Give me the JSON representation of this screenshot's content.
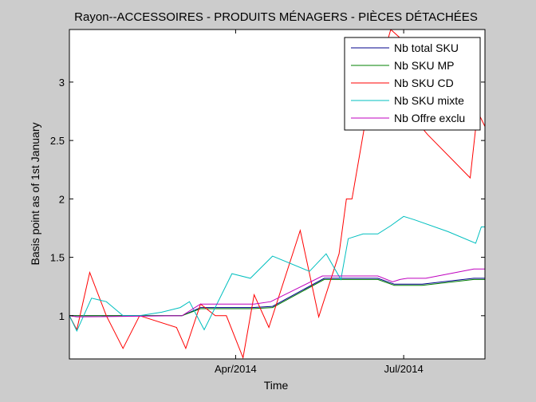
{
  "chart_data": {
    "type": "line",
    "title": "Rayon--ACCESSOIRES - PRODUITS MÉNAGERS - PIÈCES DÉTACHÉES",
    "xlabel": "Time",
    "ylabel": "Basis point as of 1st January",
    "xlim": [
      "2014-01-01",
      "2014-08-14"
    ],
    "ylim": [
      0.63,
      3.45
    ],
    "x_ticks": [
      {
        "date": "2014-04-01",
        "label": "Apr/2014"
      },
      {
        "date": "2014-07-01",
        "label": "Jul/2014"
      }
    ],
    "y_ticks": [
      {
        "value": 1,
        "label": "1"
      },
      {
        "value": 1.5,
        "label": "1.5"
      },
      {
        "value": 2,
        "label": "2"
      },
      {
        "value": 2.5,
        "label": "2.5"
      },
      {
        "value": 3,
        "label": "3"
      }
    ],
    "grid": false,
    "legend_position": "top-right",
    "series": [
      {
        "name": "Nb total SKU",
        "color": "#00008b",
        "points": [
          [
            "2014-01-01",
            1.0
          ],
          [
            "2014-03-03",
            1.0
          ],
          [
            "2014-03-13",
            1.07
          ],
          [
            "2014-04-10",
            1.07
          ],
          [
            "2014-04-21",
            1.08
          ],
          [
            "2014-05-19",
            1.32
          ],
          [
            "2014-06-17",
            1.32
          ],
          [
            "2014-06-26",
            1.27
          ],
          [
            "2014-07-11",
            1.27
          ],
          [
            "2014-08-08",
            1.32
          ],
          [
            "2014-08-14",
            1.32
          ]
        ]
      },
      {
        "name": "Nb SKU MP",
        "color": "#008000",
        "points": [
          [
            "2014-01-01",
            1.0
          ],
          [
            "2014-03-03",
            1.0
          ],
          [
            "2014-03-13",
            1.06
          ],
          [
            "2014-04-10",
            1.06
          ],
          [
            "2014-04-21",
            1.07
          ],
          [
            "2014-05-19",
            1.31
          ],
          [
            "2014-06-17",
            1.31
          ],
          [
            "2014-06-26",
            1.26
          ],
          [
            "2014-07-11",
            1.26
          ],
          [
            "2014-08-08",
            1.31
          ],
          [
            "2014-08-14",
            1.31
          ]
        ]
      },
      {
        "name": "Nb SKU CD",
        "color": "#ff0000",
        "points": [
          [
            "2014-01-01",
            1.0
          ],
          [
            "2014-01-05",
            0.88
          ],
          [
            "2014-01-12",
            1.37
          ],
          [
            "2014-01-21",
            1.0
          ],
          [
            "2014-01-30",
            0.72
          ],
          [
            "2014-02-08",
            1.0
          ],
          [
            "2014-02-28",
            0.9
          ],
          [
            "2014-03-05",
            0.72
          ],
          [
            "2014-03-13",
            1.1
          ],
          [
            "2014-03-21",
            1.0
          ],
          [
            "2014-03-27",
            1.0
          ],
          [
            "2014-04-05",
            0.64
          ],
          [
            "2014-04-11",
            1.18
          ],
          [
            "2014-04-19",
            0.9
          ],
          [
            "2014-05-06",
            1.73
          ],
          [
            "2014-05-16",
            0.99
          ],
          [
            "2014-05-27",
            1.53
          ],
          [
            "2014-05-31",
            2.0
          ],
          [
            "2014-06-03",
            2.0
          ],
          [
            "2014-06-11",
            2.73
          ],
          [
            "2014-06-24",
            3.45
          ],
          [
            "2014-07-01",
            3.35
          ],
          [
            "2014-07-06",
            2.7
          ],
          [
            "2014-07-14",
            2.55
          ],
          [
            "2014-08-06",
            2.18
          ],
          [
            "2014-08-10",
            2.75
          ],
          [
            "2014-08-14",
            2.62
          ]
        ]
      },
      {
        "name": "Nb SKU mixte",
        "color": "#00bfbf",
        "points": [
          [
            "2014-01-01",
            1.0
          ],
          [
            "2014-01-05",
            0.87
          ],
          [
            "2014-01-13",
            1.15
          ],
          [
            "2014-01-21",
            1.12
          ],
          [
            "2014-01-30",
            1.0
          ],
          [
            "2014-02-08",
            1.0
          ],
          [
            "2014-02-20",
            1.03
          ],
          [
            "2014-03-02",
            1.07
          ],
          [
            "2014-03-07",
            1.12
          ],
          [
            "2014-03-15",
            0.88
          ],
          [
            "2014-03-30",
            1.36
          ],
          [
            "2014-04-09",
            1.32
          ],
          [
            "2014-04-21",
            1.51
          ],
          [
            "2014-05-11",
            1.38
          ],
          [
            "2014-05-20",
            1.53
          ],
          [
            "2014-05-28",
            1.31
          ],
          [
            "2014-06-01",
            1.66
          ],
          [
            "2014-06-09",
            1.7
          ],
          [
            "2014-06-17",
            1.7
          ],
          [
            "2014-06-24",
            1.77
          ],
          [
            "2014-07-01",
            1.85
          ],
          [
            "2014-07-07",
            1.82
          ],
          [
            "2014-07-25",
            1.72
          ],
          [
            "2014-08-09",
            1.62
          ],
          [
            "2014-08-12",
            1.76
          ],
          [
            "2014-08-14",
            1.76
          ]
        ]
      },
      {
        "name": "Nb Offre exclu",
        "color": "#bf00bf",
        "points": [
          [
            "2014-01-01",
            1.0
          ],
          [
            "2014-01-05",
            0.99
          ],
          [
            "2014-03-03",
            1.0
          ],
          [
            "2014-03-13",
            1.1
          ],
          [
            "2014-04-11",
            1.1
          ],
          [
            "2014-04-20",
            1.12
          ],
          [
            "2014-05-18",
            1.34
          ],
          [
            "2014-06-17",
            1.34
          ],
          [
            "2014-06-25",
            1.29
          ],
          [
            "2014-06-29",
            1.31
          ],
          [
            "2014-07-03",
            1.32
          ],
          [
            "2014-07-13",
            1.32
          ],
          [
            "2014-08-08",
            1.4
          ],
          [
            "2014-08-14",
            1.4
          ]
        ]
      }
    ]
  }
}
